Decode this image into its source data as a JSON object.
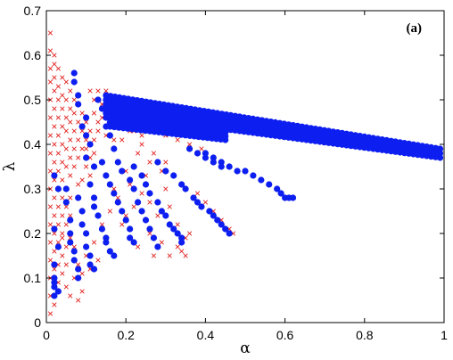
{
  "chart_data": {
    "type": "scatter",
    "panel_label": "(a)",
    "xlabel": "α",
    "ylabel": "λ",
    "xlim": [
      0,
      1
    ],
    "ylim": [
      0,
      0.7
    ],
    "x_ticks": [
      0,
      0.2,
      0.4,
      0.6,
      0.8,
      1
    ],
    "x_tick_labels": [
      "0",
      "0.2",
      "0.4",
      "0.6",
      "0.8",
      "1"
    ],
    "y_ticks": [
      0,
      0.1,
      0.2,
      0.3,
      0.4,
      0.5,
      0.6,
      0.7
    ],
    "y_tick_labels": [
      "0",
      "0.1",
      "0.2",
      "0.3",
      "0.4",
      "0.5",
      "0.6",
      "0.7"
    ],
    "grid": false,
    "colors": {
      "crosses": "#e0211f",
      "dots": "#0d1ef0"
    },
    "series": [
      {
        "marker": "x",
        "color": "#e0211f",
        "points": [
          [
            0.01,
            0.65
          ],
          [
            0.01,
            0.61
          ],
          [
            0.02,
            0.6
          ],
          [
            0.02,
            0.58
          ],
          [
            0.01,
            0.57
          ],
          [
            0.03,
            0.57
          ],
          [
            0.02,
            0.55
          ],
          [
            0.04,
            0.55
          ],
          [
            0.01,
            0.54
          ],
          [
            0.03,
            0.53
          ],
          [
            0.05,
            0.54
          ],
          [
            0.02,
            0.52
          ],
          [
            0.04,
            0.51
          ],
          [
            0.06,
            0.52
          ],
          [
            0.01,
            0.5
          ],
          [
            0.03,
            0.5
          ],
          [
            0.05,
            0.5
          ],
          [
            0.07,
            0.5
          ],
          [
            0.02,
            0.48
          ],
          [
            0.04,
            0.48
          ],
          [
            0.06,
            0.48
          ],
          [
            0.08,
            0.49
          ],
          [
            0.01,
            0.46
          ],
          [
            0.03,
            0.46
          ],
          [
            0.05,
            0.46
          ],
          [
            0.07,
            0.47
          ],
          [
            0.09,
            0.47
          ],
          [
            0.02,
            0.44
          ],
          [
            0.04,
            0.44
          ],
          [
            0.06,
            0.45
          ],
          [
            0.08,
            0.45
          ],
          [
            0.1,
            0.45
          ],
          [
            0.01,
            0.42
          ],
          [
            0.03,
            0.42
          ],
          [
            0.05,
            0.43
          ],
          [
            0.07,
            0.43
          ],
          [
            0.09,
            0.43
          ],
          [
            0.02,
            0.4
          ],
          [
            0.04,
            0.4
          ],
          [
            0.06,
            0.41
          ],
          [
            0.08,
            0.41
          ],
          [
            0.1,
            0.41
          ],
          [
            0.01,
            0.38
          ],
          [
            0.03,
            0.38
          ],
          [
            0.05,
            0.39
          ],
          [
            0.07,
            0.39
          ],
          [
            0.09,
            0.39
          ],
          [
            0.02,
            0.36
          ],
          [
            0.04,
            0.36
          ],
          [
            0.06,
            0.37
          ],
          [
            0.08,
            0.37
          ],
          [
            0.01,
            0.34
          ],
          [
            0.03,
            0.34
          ],
          [
            0.05,
            0.35
          ],
          [
            0.07,
            0.35
          ],
          [
            0.02,
            0.32
          ],
          [
            0.04,
            0.32
          ],
          [
            0.06,
            0.33
          ],
          [
            0.08,
            0.31
          ],
          [
            0.01,
            0.3
          ],
          [
            0.03,
            0.3
          ],
          [
            0.05,
            0.3
          ],
          [
            0.02,
            0.28
          ],
          [
            0.04,
            0.28
          ],
          [
            0.06,
            0.28
          ],
          [
            0.01,
            0.26
          ],
          [
            0.03,
            0.26
          ],
          [
            0.05,
            0.26
          ],
          [
            0.02,
            0.24
          ],
          [
            0.04,
            0.24
          ],
          [
            0.06,
            0.24
          ],
          [
            0.01,
            0.22
          ],
          [
            0.03,
            0.22
          ],
          [
            0.05,
            0.22
          ],
          [
            0.02,
            0.2
          ],
          [
            0.04,
            0.2
          ],
          [
            0.06,
            0.19
          ],
          [
            0.01,
            0.18
          ],
          [
            0.03,
            0.18
          ],
          [
            0.05,
            0.17
          ],
          [
            0.02,
            0.16
          ],
          [
            0.04,
            0.15
          ],
          [
            0.01,
            0.14
          ],
          [
            0.03,
            0.13
          ],
          [
            0.05,
            0.13
          ],
          [
            0.02,
            0.12
          ],
          [
            0.04,
            0.11
          ],
          [
            0.01,
            0.1
          ],
          [
            0.03,
            0.09
          ],
          [
            0.02,
            0.08
          ],
          [
            0.01,
            0.06
          ],
          [
            0.02,
            0.04
          ],
          [
            0.01,
            0.02
          ],
          [
            0.11,
            0.52
          ],
          [
            0.12,
            0.5
          ],
          [
            0.13,
            0.52
          ],
          [
            0.12,
            0.47
          ],
          [
            0.14,
            0.49
          ],
          [
            0.15,
            0.52
          ],
          [
            0.11,
            0.43
          ],
          [
            0.13,
            0.45
          ],
          [
            0.14,
            0.46
          ],
          [
            0.1,
            0.39
          ],
          [
            0.12,
            0.41
          ],
          [
            0.13,
            0.43
          ],
          [
            0.11,
            0.37
          ],
          [
            0.12,
            0.38
          ],
          [
            0.1,
            0.35
          ],
          [
            0.11,
            0.33
          ],
          [
            0.09,
            0.32
          ],
          [
            0.16,
            0.51
          ],
          [
            0.18,
            0.5
          ],
          [
            0.2,
            0.49
          ],
          [
            0.17,
            0.47
          ],
          [
            0.19,
            0.47
          ],
          [
            0.21,
            0.46
          ],
          [
            0.23,
            0.45
          ],
          [
            0.16,
            0.44
          ],
          [
            0.18,
            0.45
          ],
          [
            0.2,
            0.44
          ],
          [
            0.22,
            0.43
          ],
          [
            0.24,
            0.42
          ],
          [
            0.15,
            0.42
          ],
          [
            0.17,
            0.41
          ],
          [
            0.19,
            0.41
          ],
          [
            0.25,
            0.44
          ],
          [
            0.27,
            0.43
          ],
          [
            0.3,
            0.42
          ],
          [
            0.33,
            0.41
          ],
          [
            0.36,
            0.4
          ],
          [
            0.39,
            0.39
          ],
          [
            0.29,
            0.47
          ],
          [
            0.32,
            0.46
          ],
          [
            0.35,
            0.45
          ],
          [
            0.07,
            0.17
          ],
          [
            0.08,
            0.13
          ],
          [
            0.09,
            0.11
          ],
          [
            0.1,
            0.15
          ],
          [
            0.12,
            0.18
          ],
          [
            0.11,
            0.12
          ],
          [
            0.13,
            0.14
          ],
          [
            0.14,
            0.22
          ],
          [
            0.15,
            0.19
          ],
          [
            0.16,
            0.25
          ],
          [
            0.17,
            0.3
          ],
          [
            0.18,
            0.28
          ],
          [
            0.2,
            0.34
          ],
          [
            0.21,
            0.31
          ],
          [
            0.22,
            0.26
          ],
          [
            0.24,
            0.29
          ],
          [
            0.25,
            0.33
          ],
          [
            0.26,
            0.27
          ],
          [
            0.28,
            0.24
          ],
          [
            0.3,
            0.3
          ],
          [
            0.31,
            0.26
          ],
          [
            0.33,
            0.22
          ],
          [
            0.35,
            0.19
          ],
          [
            0.36,
            0.2
          ],
          [
            0.38,
            0.29
          ],
          [
            0.4,
            0.27
          ],
          [
            0.42,
            0.25
          ],
          [
            0.44,
            0.23
          ],
          [
            0.46,
            0.21
          ],
          [
            0.47,
            0.2
          ],
          [
            0.19,
            0.22
          ],
          [
            0.2,
            0.24
          ],
          [
            0.23,
            0.17
          ],
          [
            0.26,
            0.2
          ],
          [
            0.27,
            0.15
          ],
          [
            0.29,
            0.18
          ],
          [
            0.31,
            0.15
          ],
          [
            0.33,
            0.17
          ],
          [
            0.34,
            0.16
          ],
          [
            0.35,
            0.15
          ],
          [
            0.21,
            0.43
          ],
          [
            0.24,
            0.4
          ],
          [
            0.27,
            0.38
          ],
          [
            0.3,
            0.36
          ],
          [
            0.23,
            0.38
          ],
          [
            0.26,
            0.36
          ],
          [
            0.29,
            0.34
          ],
          [
            0.05,
            0.08
          ],
          [
            0.07,
            0.1
          ],
          [
            0.06,
            0.06
          ],
          [
            0.09,
            0.07
          ],
          [
            0.08,
            0.05
          ],
          [
            0.02,
            0.21
          ],
          [
            0.04,
            0.19
          ]
        ]
      },
      {
        "marker": "o",
        "color": "#0d1ef0",
        "points": [
          [
            0.07,
            0.56
          ],
          [
            0.07,
            0.54
          ],
          [
            0.08,
            0.51
          ],
          [
            0.08,
            0.49
          ],
          [
            0.1,
            0.46
          ],
          [
            0.09,
            0.44
          ],
          [
            0.1,
            0.42
          ],
          [
            0.11,
            0.4
          ],
          [
            0.1,
            0.37
          ],
          [
            0.12,
            0.35
          ],
          [
            0.13,
            0.5
          ],
          [
            0.14,
            0.48
          ],
          [
            0.15,
            0.46
          ],
          [
            0.15,
            0.44
          ],
          [
            0.16,
            0.42
          ],
          [
            0.02,
            0.33
          ],
          [
            0.03,
            0.3
          ],
          [
            0.02,
            0.21
          ],
          [
            0.03,
            0.17
          ],
          [
            0.02,
            0.13
          ],
          [
            0.02,
            0.1
          ],
          [
            0.02,
            0.09
          ],
          [
            0.02,
            0.08
          ],
          [
            0.02,
            0.06
          ],
          [
            0.03,
            0.07
          ],
          [
            0.05,
            0.3
          ],
          [
            0.05,
            0.27
          ],
          [
            0.06,
            0.23
          ],
          [
            0.06,
            0.2
          ],
          [
            0.06,
            0.18
          ],
          [
            0.07,
            0.16
          ],
          [
            0.07,
            0.14
          ],
          [
            0.08,
            0.12
          ],
          [
            0.08,
            0.1
          ],
          [
            0.08,
            0.28
          ],
          [
            0.09,
            0.25
          ],
          [
            0.09,
            0.22
          ],
          [
            0.1,
            0.2
          ],
          [
            0.1,
            0.17
          ],
          [
            0.11,
            0.15
          ],
          [
            0.11,
            0.13
          ],
          [
            0.12,
            0.12
          ],
          [
            0.11,
            0.31
          ],
          [
            0.12,
            0.28
          ],
          [
            0.12,
            0.26
          ],
          [
            0.13,
            0.24
          ],
          [
            0.14,
            0.21
          ],
          [
            0.15,
            0.19
          ],
          [
            0.15,
            0.18
          ],
          [
            0.16,
            0.16
          ],
          [
            0.17,
            0.15
          ],
          [
            0.14,
            0.36
          ],
          [
            0.15,
            0.33
          ],
          [
            0.16,
            0.31
          ],
          [
            0.17,
            0.29
          ],
          [
            0.18,
            0.27
          ],
          [
            0.19,
            0.25
          ],
          [
            0.2,
            0.23
          ],
          [
            0.21,
            0.21
          ],
          [
            0.21,
            0.19
          ],
          [
            0.22,
            0.18
          ],
          [
            0.17,
            0.39
          ],
          [
            0.18,
            0.36
          ],
          [
            0.19,
            0.34
          ],
          [
            0.21,
            0.32
          ],
          [
            0.22,
            0.3
          ],
          [
            0.23,
            0.27
          ],
          [
            0.24,
            0.25
          ],
          [
            0.25,
            0.23
          ],
          [
            0.26,
            0.21
          ],
          [
            0.27,
            0.19
          ],
          [
            0.28,
            0.17
          ],
          [
            0.22,
            0.35
          ],
          [
            0.24,
            0.33
          ],
          [
            0.25,
            0.31
          ],
          [
            0.26,
            0.29
          ],
          [
            0.28,
            0.27
          ],
          [
            0.29,
            0.25
          ],
          [
            0.3,
            0.24
          ],
          [
            0.31,
            0.22
          ],
          [
            0.32,
            0.21
          ],
          [
            0.33,
            0.2
          ],
          [
            0.34,
            0.19
          ],
          [
            0.34,
            0.18
          ],
          [
            0.28,
            0.36
          ],
          [
            0.3,
            0.34
          ],
          [
            0.32,
            0.33
          ],
          [
            0.34,
            0.31
          ],
          [
            0.35,
            0.3
          ],
          [
            0.37,
            0.28
          ],
          [
            0.38,
            0.27
          ],
          [
            0.39,
            0.26
          ],
          [
            0.41,
            0.25
          ],
          [
            0.42,
            0.24
          ],
          [
            0.43,
            0.23
          ],
          [
            0.44,
            0.22
          ],
          [
            0.45,
            0.21
          ],
          [
            0.46,
            0.2
          ],
          [
            0.4,
            0.38
          ],
          [
            0.42,
            0.37
          ],
          [
            0.44,
            0.36
          ],
          [
            0.46,
            0.35
          ],
          [
            0.48,
            0.34
          ],
          [
            0.5,
            0.34
          ],
          [
            0.52,
            0.33
          ],
          [
            0.54,
            0.32
          ],
          [
            0.56,
            0.31
          ],
          [
            0.58,
            0.3
          ],
          [
            0.59,
            0.29
          ],
          [
            0.6,
            0.28
          ],
          [
            0.61,
            0.28
          ],
          [
            0.62,
            0.28
          ],
          [
            0.36,
            0.39
          ],
          [
            0.38,
            0.38
          ],
          [
            0.4,
            0.37
          ],
          [
            0.42,
            0.36
          ],
          [
            0.44,
            0.35
          ]
        ],
        "bands": [
          {
            "x_start": 0.15,
            "x_end": 0.99,
            "upper_start": 0.51,
            "lower_start": 0.47,
            "upper_end": 0.39,
            "lower_end": 0.37
          },
          {
            "x_start": 0.16,
            "x_end": 0.45,
            "upper_start": 0.5,
            "lower_start": 0.44,
            "upper_end": 0.46,
            "lower_end": 0.41
          }
        ]
      }
    ]
  }
}
